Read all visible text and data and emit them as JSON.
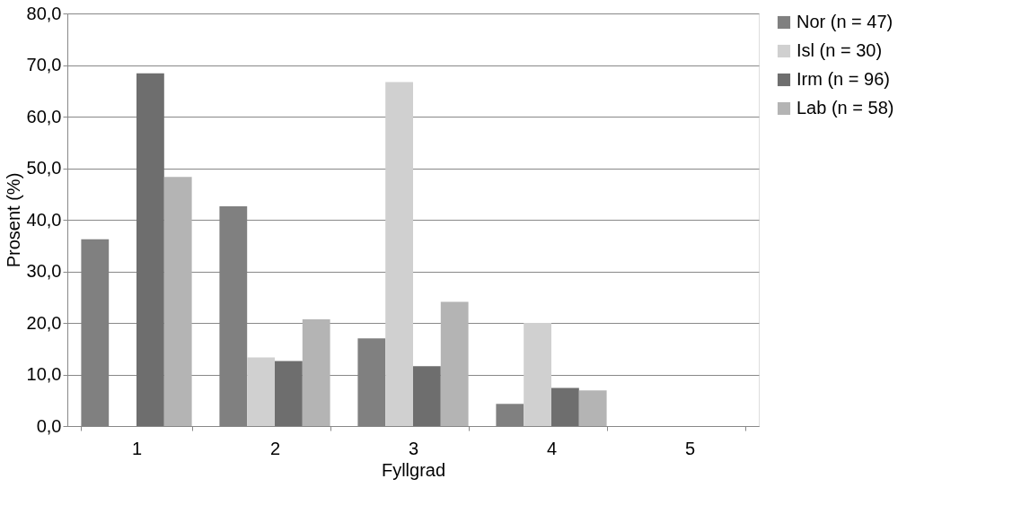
{
  "chart_data": {
    "type": "bar",
    "xlabel": "Fyllgrad",
    "ylabel": "Prosent (%)",
    "categories": [
      "1",
      "2",
      "3",
      "4",
      "5"
    ],
    "series": [
      {
        "name": "Nor (n = 47)",
        "color": "#808080",
        "values": [
          36.2,
          42.6,
          17.0,
          4.3,
          0
        ]
      },
      {
        "name": "Isl (n = 30)",
        "color": "#d0d0d0",
        "values": [
          0,
          13.3,
          66.7,
          20.0,
          0
        ]
      },
      {
        "name": "Irm (n = 96)",
        "color": "#6e6e6e",
        "values": [
          68.4,
          12.6,
          11.6,
          7.4,
          0
        ]
      },
      {
        "name": "Lab (n = 58)",
        "color": "#b4b4b4",
        "values": [
          48.3,
          20.7,
          24.1,
          6.9,
          0
        ]
      }
    ],
    "ylim": [
      0,
      80
    ],
    "yticks": [
      {
        "value": 0,
        "label": "0,0"
      },
      {
        "value": 10,
        "label": "10,0"
      },
      {
        "value": 20,
        "label": "20,0"
      },
      {
        "value": 30,
        "label": "30,0"
      },
      {
        "value": 40,
        "label": "40,0"
      },
      {
        "value": 50,
        "label": "50,0"
      },
      {
        "value": 60,
        "label": "60,0"
      },
      {
        "value": 70,
        "label": "70,0"
      },
      {
        "value": 80,
        "label": "80,0"
      }
    ],
    "grid": "y",
    "legend": "right"
  }
}
